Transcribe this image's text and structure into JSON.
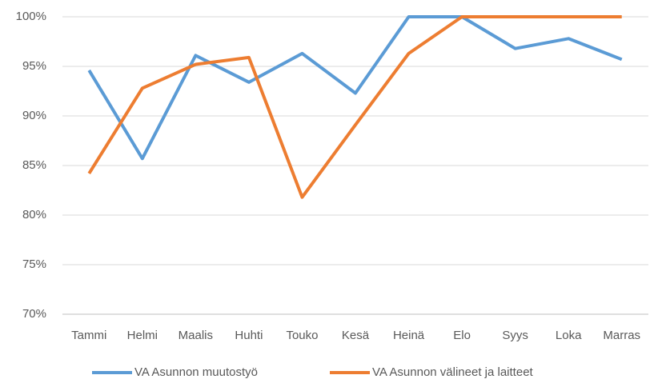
{
  "chart_data": {
    "type": "line",
    "categories": [
      "Tammi",
      "Helmi",
      "Maalis",
      "Huhti",
      "Touko",
      "Kesä",
      "Heinä",
      "Elo",
      "Syys",
      "Loka",
      "Marras"
    ],
    "series": [
      {
        "name": "VA Asunnon muutostyö",
        "color": "#5b9bd5",
        "values": [
          94.6,
          85.7,
          96.1,
          93.4,
          96.3,
          92.3,
          100,
          100,
          96.8,
          97.8,
          95.7
        ]
      },
      {
        "name": "VA Asunnon välineet ja laitteet",
        "color": "#ed7d31",
        "values": [
          84.2,
          92.8,
          95.2,
          95.9,
          81.8,
          89.1,
          96.3,
          100,
          100,
          100,
          100
        ]
      }
    ],
    "ylim": [
      70,
      100
    ],
    "yticks": [
      {
        "value": 70,
        "label": "70%"
      },
      {
        "value": 75,
        "label": "75%"
      },
      {
        "value": 80,
        "label": "80%"
      },
      {
        "value": 85,
        "label": "85%"
      },
      {
        "value": 90,
        "label": "90%"
      },
      {
        "value": 95,
        "label": "95%"
      },
      {
        "value": 100,
        "label": "100%"
      }
    ],
    "grid": true,
    "legend": "bottom"
  }
}
